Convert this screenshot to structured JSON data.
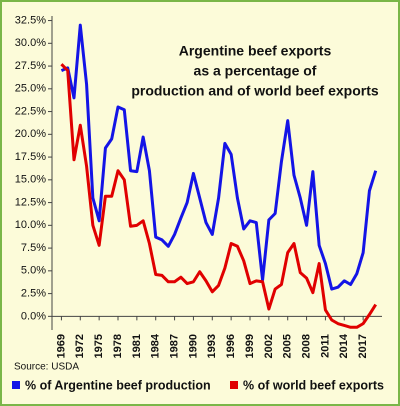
{
  "chart_data": {
    "type": "line",
    "title": [
      "Argentine beef exports",
      "as a percentage of",
      "production and of world beef exports"
    ],
    "source": "Source: USDA",
    "x": [
      1969,
      1970,
      1971,
      1972,
      1973,
      1974,
      1975,
      1976,
      1977,
      1978,
      1979,
      1980,
      1981,
      1982,
      1983,
      1984,
      1985,
      1986,
      1987,
      1988,
      1989,
      1990,
      1991,
      1992,
      1993,
      1994,
      1995,
      1996,
      1997,
      1998,
      1999,
      2000,
      2001,
      2002,
      2003,
      2004,
      2005,
      2006,
      2007,
      2008,
      2009,
      2010,
      2011,
      2012,
      2013,
      2014,
      2015,
      2016,
      2017,
      2018,
      2019
    ],
    "series": [
      {
        "name": "% of Argentine beef production",
        "color": "#1414e6",
        "values": [
          27.0,
          27.3,
          24.0,
          32.0,
          25.5,
          13.0,
          10.5,
          18.5,
          19.5,
          23.0,
          22.7,
          16.0,
          15.9,
          19.7,
          16.0,
          8.7,
          8.4,
          7.7,
          9.0,
          10.8,
          12.5,
          15.7,
          13.0,
          10.3,
          9.0,
          13.0,
          19.0,
          17.8,
          13.0,
          9.6,
          10.5,
          10.3,
          4.0,
          10.6,
          11.3,
          17.0,
          21.5,
          15.5,
          13.0,
          10.0,
          15.9,
          7.8,
          5.8,
          3.0,
          3.2,
          3.9,
          3.5,
          4.7,
          7.0,
          13.8,
          16.0
        ]
      },
      {
        "name": "% of world beef exports",
        "color": "#e00000",
        "values": [
          27.7,
          27.0,
          17.2,
          21.0,
          16.5,
          10.0,
          7.8,
          13.2,
          13.2,
          16.0,
          15.0,
          9.9,
          10.0,
          10.5,
          8.0,
          4.6,
          4.5,
          3.8,
          3.8,
          4.3,
          3.6,
          3.8,
          4.9,
          3.9,
          2.7,
          3.4,
          5.3,
          8.0,
          7.7,
          6.1,
          3.6,
          3.9,
          3.8,
          0.8,
          3.0,
          3.5,
          7.0,
          8.0,
          4.8,
          4.2,
          2.6,
          5.8,
          0.7,
          -0.4,
          -0.8,
          -1.0,
          -1.2,
          -1.2,
          -0.8,
          0.2,
          1.3
        ]
      }
    ],
    "xlim": [
      1967.5,
      2020
    ],
    "xticks": [
      1969,
      1972,
      1975,
      1978,
      1981,
      1984,
      1987,
      1990,
      1993,
      1996,
      1999,
      2002,
      2005,
      2008,
      2011,
      2014,
      2017
    ],
    "ylim": [
      -1.5,
      33
    ],
    "yticks": [
      {
        "value": 0,
        "label": "0.0%"
      },
      {
        "value": 2.5,
        "label": "2.5%"
      },
      {
        "value": 5,
        "label": "5.0%"
      },
      {
        "value": 7.5,
        "label": "7.5%"
      },
      {
        "value": 10,
        "label": "10.0%"
      },
      {
        "value": 12.5,
        "label": "12.5%"
      },
      {
        "value": 15,
        "label": "15.0%"
      },
      {
        "value": 17.5,
        "label": "17.5%"
      },
      {
        "value": 20,
        "label": "20.0%"
      },
      {
        "value": 22.5,
        "label": "22.5%"
      },
      {
        "value": 25,
        "label": "25.0%"
      },
      {
        "value": 27.5,
        "label": "27.5%"
      },
      {
        "value": 30,
        "label": "30.0%"
      },
      {
        "value": 32.5,
        "label": "32.5%"
      }
    ],
    "grid": false
  }
}
